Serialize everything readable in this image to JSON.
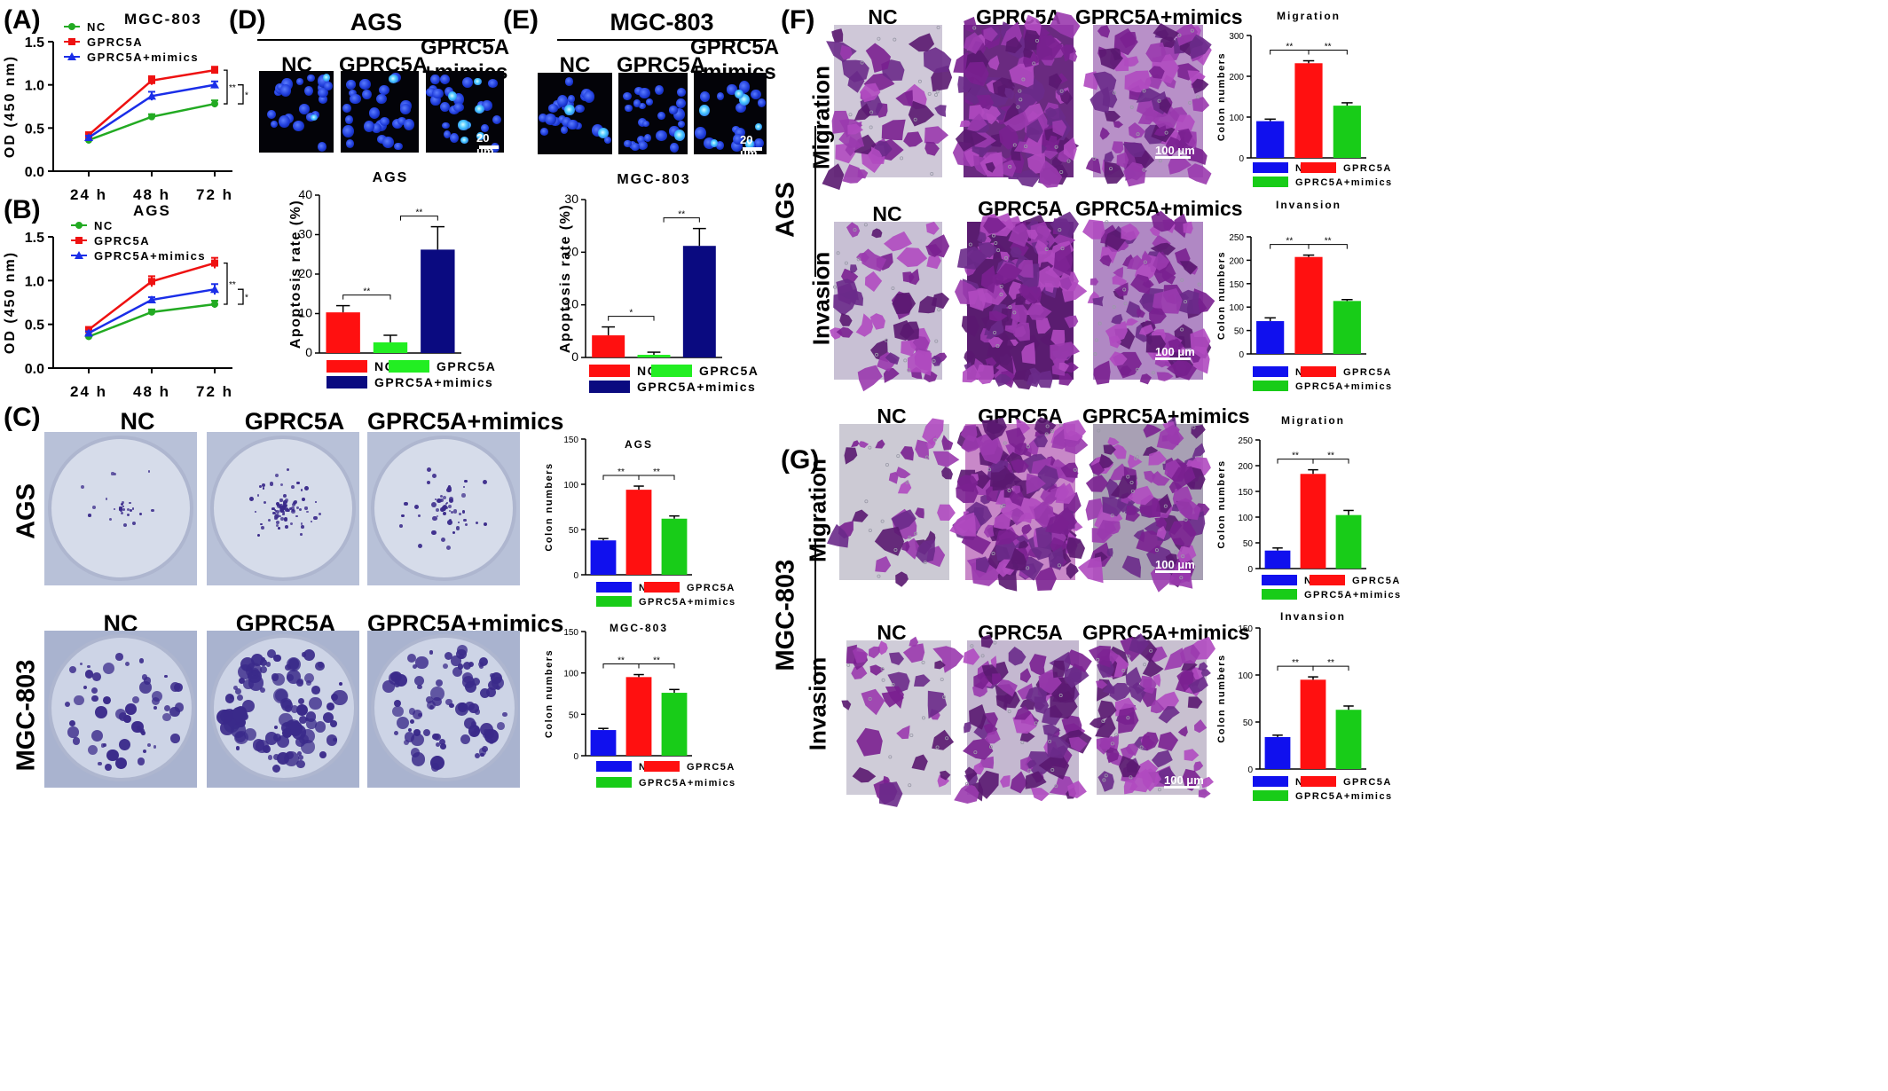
{
  "panel_labels": {
    "A": "(A)",
    "B": "(B)",
    "C": "(C)",
    "D": "(D)",
    "E": "(E)",
    "F": "(F)",
    "G": "(G)"
  },
  "groups": [
    "NC",
    "GPRC5A",
    "GPRC5A+mimics"
  ],
  "groups_D_E": [
    "NC",
    "GPRC5A",
    "GPRC5A\n+mimics"
  ],
  "cell_lines": {
    "ags": "AGS",
    "mgc": "MGC-803"
  },
  "assays": {
    "migration": "Migration",
    "invasion": "Invasion"
  },
  "scalebars": {
    "fluor": "20 μm",
    "stain": "100 μm"
  },
  "colors": {
    "NC_line": "#22aa22",
    "GPRC5A_line": "#ee1111",
    "mimics_line": "#1a2ee8",
    "bar_nc": "#1010ee",
    "bar_gprc5a": "#ff1010",
    "bar_mimics": "#18cc18",
    "bar_d_nc": "#ff1010",
    "bar_d_gprc5a": "#22ee22",
    "bar_d_mimics": "#0a0a80",
    "stain": "#8a2aa0"
  },
  "chart_data": [
    {
      "id": "A",
      "type": "line",
      "title": "MGC-803",
      "ylabel": "OD (450 nm)",
      "categories": [
        "24 h",
        "48 h",
        "72 h"
      ],
      "ylim": [
        0,
        1.5
      ],
      "yticks": [
        "0.0",
        "0.5",
        "1.0",
        "1.5"
      ],
      "series": [
        {
          "name": "NC",
          "values": [
            0.36,
            0.63,
            0.78
          ],
          "err": [
            0.02,
            0.03,
            0.04
          ]
        },
        {
          "name": "GPRC5A",
          "values": [
            0.42,
            1.05,
            1.17
          ],
          "err": [
            0.03,
            0.05,
            0.04
          ]
        },
        {
          "name": "GPRC5A+mimics",
          "values": [
            0.39,
            0.87,
            1.0
          ],
          "err": [
            0.02,
            0.05,
            0.04
          ]
        }
      ],
      "sig": [
        "**",
        "**",
        "*"
      ]
    },
    {
      "id": "B",
      "type": "line",
      "title": "AGS",
      "ylabel": "OD (450 nm)",
      "categories": [
        "24 h",
        "48 h",
        "72 h"
      ],
      "ylim": [
        0,
        1.5
      ],
      "yticks": [
        "0.0",
        "0.5",
        "1.0",
        "1.5"
      ],
      "series": [
        {
          "name": "NC",
          "values": [
            0.36,
            0.64,
            0.73
          ],
          "err": [
            0.02,
            0.03,
            0.04
          ]
        },
        {
          "name": "GPRC5A",
          "values": [
            0.44,
            0.99,
            1.2
          ],
          "err": [
            0.02,
            0.06,
            0.06
          ]
        },
        {
          "name": "GPRC5A+mimics",
          "values": [
            0.4,
            0.78,
            0.9
          ],
          "err": [
            0.02,
            0.03,
            0.06
          ]
        }
      ],
      "sig": [
        "**",
        "**",
        "*"
      ]
    },
    {
      "id": "D",
      "type": "bar",
      "title": "AGS",
      "ylabel": "Apoptosis rate (%)",
      "categories": [
        "NC",
        "GPRC5A",
        "GPRC5A+mimics"
      ],
      "ylim": [
        0,
        40
      ],
      "yticks": [
        "0",
        "10",
        "20",
        "30",
        "40"
      ],
      "values": [
        10.3,
        2.7,
        26.2
      ],
      "err": [
        1.7,
        1.8,
        5.8
      ],
      "sig": [
        "**",
        "**"
      ]
    },
    {
      "id": "E",
      "type": "bar",
      "title": "MGC-803",
      "ylabel": "Apoptosis rate (%)",
      "categories": [
        "NC",
        "GPRC5A",
        "GPRC5A+mimics"
      ],
      "ylim": [
        0,
        30
      ],
      "yticks": [
        "0",
        "10",
        "20",
        "30"
      ],
      "values": [
        4.2,
        0.5,
        21.2
      ],
      "err": [
        1.6,
        0.5,
        3.3
      ],
      "sig": [
        "*",
        "**"
      ]
    },
    {
      "id": "C1",
      "type": "bar",
      "title": "AGS",
      "ylabel": "Colon numbers",
      "categories": [
        "NC",
        "GPRC5A",
        "GPRC5A+mimics"
      ],
      "ylim": [
        0,
        150
      ],
      "yticks": [
        "0",
        "50",
        "100",
        "150"
      ],
      "values": [
        38,
        94,
        62
      ],
      "err": [
        2,
        4,
        3
      ],
      "sig": [
        "**",
        "**"
      ]
    },
    {
      "id": "C2",
      "type": "bar",
      "title": "MGC-803",
      "ylabel": "Colon numbers",
      "categories": [
        "NC",
        "GPRC5A",
        "GPRC5A+mimics"
      ],
      "ylim": [
        0,
        150
      ],
      "yticks": [
        "0",
        "50",
        "100",
        "150"
      ],
      "values": [
        31,
        95,
        76
      ],
      "err": [
        2,
        3,
        4
      ],
      "sig": [
        "**",
        "**"
      ]
    },
    {
      "id": "F1",
      "type": "bar",
      "title": "Migration",
      "ylabel": "Colon numbers",
      "categories": [
        "NC",
        "GPRC5A",
        "GPRC5A+mimics"
      ],
      "ylim": [
        0,
        300
      ],
      "yticks": [
        "0",
        "100",
        "200",
        "300"
      ],
      "values": [
        90,
        232,
        128
      ],
      "err": [
        5,
        6,
        7
      ],
      "sig": [
        "**",
        "**"
      ]
    },
    {
      "id": "F2",
      "type": "bar",
      "title": "Invansion",
      "ylabel": "Colon numbers",
      "categories": [
        "NC",
        "GPRC5A",
        "GPRC5A+mimics"
      ],
      "ylim": [
        0,
        250
      ],
      "yticks": [
        "0",
        "50",
        "100",
        "150",
        "200",
        "250"
      ],
      "values": [
        70,
        207,
        113
      ],
      "err": [
        7,
        4,
        3
      ],
      "sig": [
        "**",
        "**"
      ]
    },
    {
      "id": "G1",
      "type": "bar",
      "title": "Migration",
      "ylabel": "Colon numbers",
      "categories": [
        "NC",
        "GPRC5A",
        "GPRC5A+mimics"
      ],
      "ylim": [
        0,
        250
      ],
      "yticks": [
        "0",
        "50",
        "100",
        "150",
        "200",
        "250"
      ],
      "values": [
        35,
        184,
        104
      ],
      "err": [
        5,
        8,
        9
      ],
      "sig": [
        "**",
        "**"
      ]
    },
    {
      "id": "G2",
      "type": "bar",
      "title": "Invansion",
      "ylabel": "Colon numbers",
      "categories": [
        "NC",
        "GPRC5A",
        "GPRC5A+mimics"
      ],
      "ylim": [
        0,
        150
      ],
      "yticks": [
        "0",
        "50",
        "100",
        "150"
      ],
      "values": [
        34,
        95,
        63
      ],
      "err": [
        2,
        3,
        4
      ],
      "sig": [
        "**",
        "**"
      ]
    }
  ]
}
